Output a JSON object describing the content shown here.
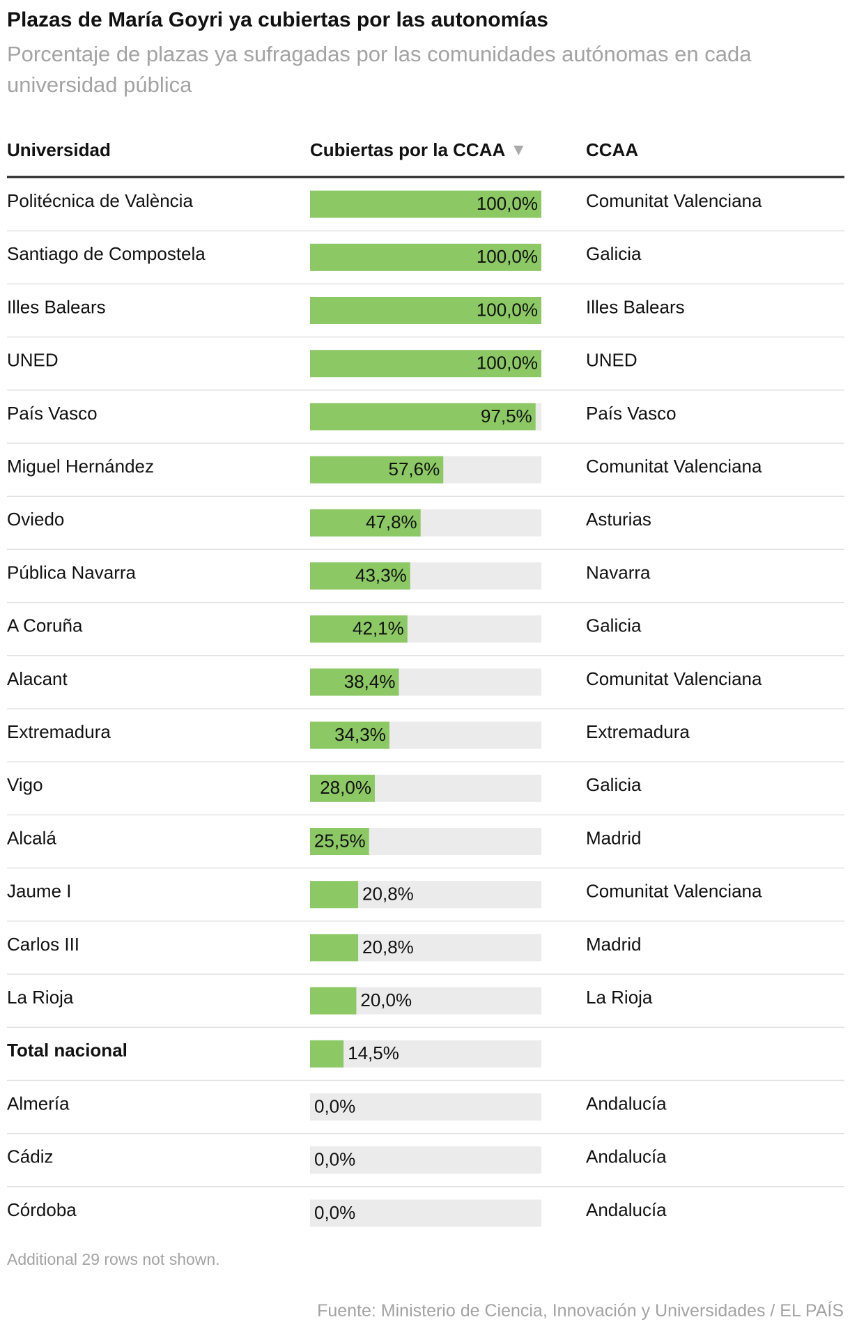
{
  "header": {
    "title": "Plazas de María Goyri ya cubiertas por las autonomías",
    "subtitle": "Porcentaje de plazas ya sufragadas por las comunidades autónomas en cada universidad pública"
  },
  "table": {
    "columns": [
      "Universidad",
      "Cubiertas por la CCAA",
      "CCAA"
    ],
    "xlim": [
      0,
      100
    ],
    "bar_color": "#8cc864",
    "track_color": "#ebebeb",
    "rows": [
      {
        "universidad": "Politécnica de València",
        "value": 100,
        "value_label": "100,0%",
        "ccaa": "Comunitat Valenciana"
      },
      {
        "universidad": "Santiago de Compostela",
        "value": 100,
        "value_label": "100,0%",
        "ccaa": "Galicia"
      },
      {
        "universidad": "Illes Balears",
        "value": 100,
        "value_label": "100,0%",
        "ccaa": "Illes Balears"
      },
      {
        "universidad": "UNED",
        "value": 100,
        "value_label": "100,0%",
        "ccaa": "UNED"
      },
      {
        "universidad": "País Vasco",
        "value": 97.5,
        "value_label": "97,5%",
        "ccaa": "País Vasco"
      },
      {
        "universidad": "Miguel Hernández",
        "value": 57.6,
        "value_label": "57,6%",
        "ccaa": "Comunitat Valenciana"
      },
      {
        "universidad": "Oviedo",
        "value": 47.8,
        "value_label": "47,8%",
        "ccaa": "Asturias"
      },
      {
        "universidad": "Pública Navarra",
        "value": 43.3,
        "value_label": "43,3%",
        "ccaa": "Navarra"
      },
      {
        "universidad": "A Coruña",
        "value": 42.1,
        "value_label": "42,1%",
        "ccaa": "Galicia"
      },
      {
        "universidad": "Alacant",
        "value": 38.4,
        "value_label": "38,4%",
        "ccaa": "Comunitat Valenciana"
      },
      {
        "universidad": "Extremadura",
        "value": 34.3,
        "value_label": "34,3%",
        "ccaa": "Extremadura"
      },
      {
        "universidad": "Vigo",
        "value": 28.0,
        "value_label": "28,0%",
        "ccaa": "Galicia"
      },
      {
        "universidad": "Alcalá",
        "value": 25.5,
        "value_label": "25,5%",
        "ccaa": "Madrid"
      },
      {
        "universidad": "Jaume I",
        "value": 20.8,
        "value_label": "20,8%",
        "ccaa": "Comunitat Valenciana"
      },
      {
        "universidad": "Carlos III",
        "value": 20.8,
        "value_label": "20,8%",
        "ccaa": "Madrid"
      },
      {
        "universidad": "La Rioja",
        "value": 20.0,
        "value_label": "20,0%",
        "ccaa": "La Rioja"
      },
      {
        "universidad": "Total nacional",
        "value": 14.5,
        "value_label": "14,5%",
        "bold": true
      },
      {
        "universidad": "Almería",
        "value": 0,
        "value_label": "0,0%",
        "ccaa": "Andalucía"
      },
      {
        "universidad": "Cádiz",
        "value": 0,
        "value_label": "0,0%",
        "ccaa": "Andalucía"
      },
      {
        "universidad": "Córdoba",
        "value": 0,
        "value_label": "0,0%",
        "ccaa": "Andalucía"
      }
    ]
  },
  "footer": {
    "note": "Additional 29 rows not shown.",
    "source": "Fuente: Ministerio de Ciencia, Innovación y Universidades / EL PAÍS"
  }
}
